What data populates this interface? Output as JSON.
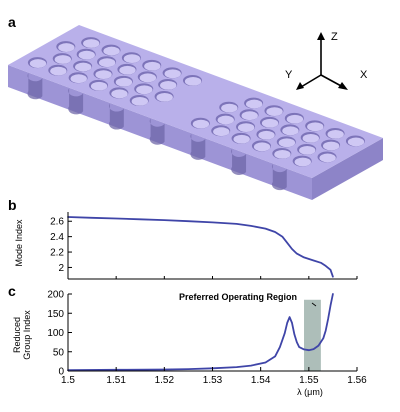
{
  "panels": {
    "a": {
      "label": "a",
      "axes": {
        "z": "Z",
        "y": "Y",
        "x": "X"
      }
    },
    "b": {
      "label": "b"
    },
    "c": {
      "label": "c",
      "annotation": "Preferred Operating Region"
    }
  },
  "colors": {
    "slab_top": "#b9b0ea",
    "slab_front": "#9d94d6",
    "slab_side": "#8d84c8",
    "hole": "#cfc8f4",
    "curve": "#3f45a8",
    "region": "#9fb3ad",
    "axis": "#000000"
  },
  "chart_data": [
    {
      "type": "line",
      "title": "",
      "xlabel": "",
      "ylabel": "Mode Index",
      "xlim": [
        1.5,
        1.56
      ],
      "ylim": [
        1.85,
        2.72
      ],
      "yticks": [
        "2",
        "2.2",
        "2.4",
        "2.6"
      ],
      "grid": false,
      "series": [
        {
          "x": [
            1.5,
            1.505,
            1.51,
            1.515,
            1.52,
            1.525,
            1.53,
            1.535,
            1.538,
            1.541,
            1.543,
            1.5445,
            1.5455,
            1.5465,
            1.5475,
            1.549,
            1.551,
            1.5525,
            1.5535,
            1.5545,
            1.555
          ],
          "y": [
            2.655,
            2.645,
            2.635,
            2.625,
            2.615,
            2.6,
            2.585,
            2.565,
            2.54,
            2.505,
            2.46,
            2.4,
            2.32,
            2.24,
            2.18,
            2.13,
            2.09,
            2.06,
            2.02,
            1.97,
            1.88
          ]
        }
      ]
    },
    {
      "type": "line",
      "title": "",
      "xlabel": "λ (μm)",
      "ylabel": "Reduced Group Index",
      "xlim": [
        1.5,
        1.56
      ],
      "ylim": [
        0,
        200
      ],
      "xticks": [
        "1.5",
        "1.51",
        "1.52",
        "1.53",
        "1.54",
        "1.55",
        "1.56"
      ],
      "yticks": [
        "0",
        "50",
        "100",
        "150",
        "200"
      ],
      "grid": false,
      "highlight_region": {
        "x": [
          1.549,
          1.5525
        ],
        "y": [
          0,
          185
        ]
      },
      "series": [
        {
          "x": [
            1.5,
            1.51,
            1.52,
            1.525,
            1.53,
            1.535,
            1.538,
            1.541,
            1.543,
            1.544,
            1.545,
            1.5455,
            1.546,
            1.5465,
            1.547,
            1.5475,
            1.548,
            1.549,
            1.55,
            1.551,
            1.552,
            1.553,
            1.5535,
            1.554,
            1.5545,
            1.555
          ],
          "y": [
            2,
            3,
            4,
            5,
            7,
            10,
            14,
            22,
            38,
            62,
            98,
            125,
            140,
            125,
            95,
            75,
            62,
            56,
            54,
            57,
            66,
            85,
            105,
            135,
            170,
            200
          ]
        }
      ]
    }
  ]
}
